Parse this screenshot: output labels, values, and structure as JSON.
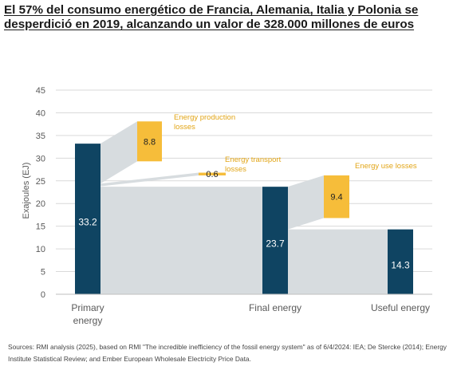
{
  "headline": "El 57% del consumo energético de Francia, Alemania, Italia y Polonia se desperdició en 2019, alcanzando un valor de 328.000 millones de euros",
  "source": "Sources: RMI analysis (2025), based on RMI \"The incredible inefficiency of the fossil energy system\" as of 6/4/2024: IEA; De Stercke (2014); Energy Institute Statistical Review; and Ember European Wholesale Electricity Price Data.",
  "colors": {
    "bar": "#0f4462",
    "loss": "#f6bd3a",
    "flow": "#d7dcdf",
    "lossLabel": "#e2a517",
    "axis": "#595959",
    "grid": "#d9d9d9"
  },
  "chart_data": {
    "type": "bar",
    "ylabel": "Exajoules (EJ)",
    "ylim": [
      0,
      45
    ],
    "yticks": [
      0,
      5,
      10,
      15,
      20,
      25,
      30,
      35,
      40,
      45
    ],
    "grid": true,
    "categories": [
      {
        "lines": [
          "Primary",
          "energy"
        ]
      },
      {
        "lines": [
          "Final energy"
        ]
      },
      {
        "lines": [
          "Useful energy"
        ]
      }
    ],
    "values": [
      33.2,
      23.7,
      14.3
    ],
    "value_labels": [
      "33.2",
      "23.7",
      "14.3"
    ],
    "losses": [
      {
        "value": 8.8,
        "label": "8.8",
        "name_lines": [
          "Energy production",
          "losses"
        ],
        "base": 29.3,
        "top": 38.1
      },
      {
        "value": 0.6,
        "label": "0.6",
        "name_lines": [
          "Energy transport",
          "losses"
        ],
        "base": 26.2,
        "top": 26.8
      },
      {
        "value": 9.4,
        "label": "9.4",
        "name_lines": [
          "Energy use losses"
        ],
        "base": 16.8,
        "top": 26.2
      }
    ]
  }
}
